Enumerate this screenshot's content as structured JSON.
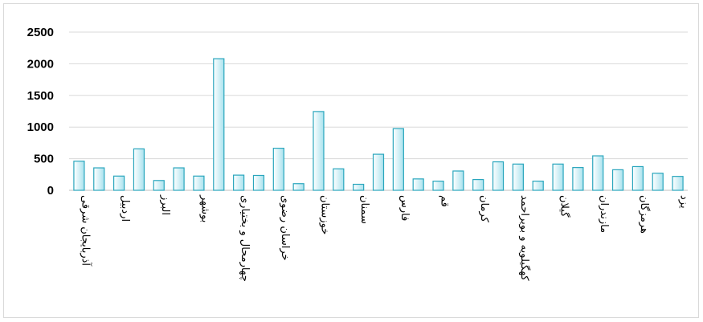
{
  "chart_data": {
    "type": "bar",
    "title": "",
    "xlabel": "",
    "ylabel": "",
    "ylim": [
      0,
      2500
    ],
    "yticks": [
      0,
      500,
      1000,
      1500,
      2000,
      2500
    ],
    "grid": true,
    "legend": "none",
    "categories": [
      "آذربایجان شرقی",
      "",
      "اردبیل",
      "",
      "البرز",
      "",
      "بوشهر",
      "",
      "چهارمحال و بختیاری",
      "",
      "خراسان رضوی",
      "",
      "خوزستان",
      "",
      "سمنان",
      "",
      "فارس",
      "",
      "قم",
      "",
      "کرمان",
      "",
      "کهگیلویه و بویراحمد",
      "",
      "گیلان",
      "",
      "مازندران",
      "",
      "هرمزگان",
      "",
      "یزد"
    ],
    "values": [
      460,
      355,
      225,
      655,
      155,
      355,
      225,
      2080,
      240,
      235,
      665,
      105,
      1245,
      340,
      95,
      570,
      975,
      180,
      145,
      305,
      170,
      450,
      415,
      145,
      415,
      360,
      545,
      325,
      375,
      270,
      220
    ],
    "colors": {
      "bar_stroke": "#2aa6bd",
      "bar_fill_light": "#ffffff",
      "bar_fill_dark": "#a9e2ee"
    }
  }
}
